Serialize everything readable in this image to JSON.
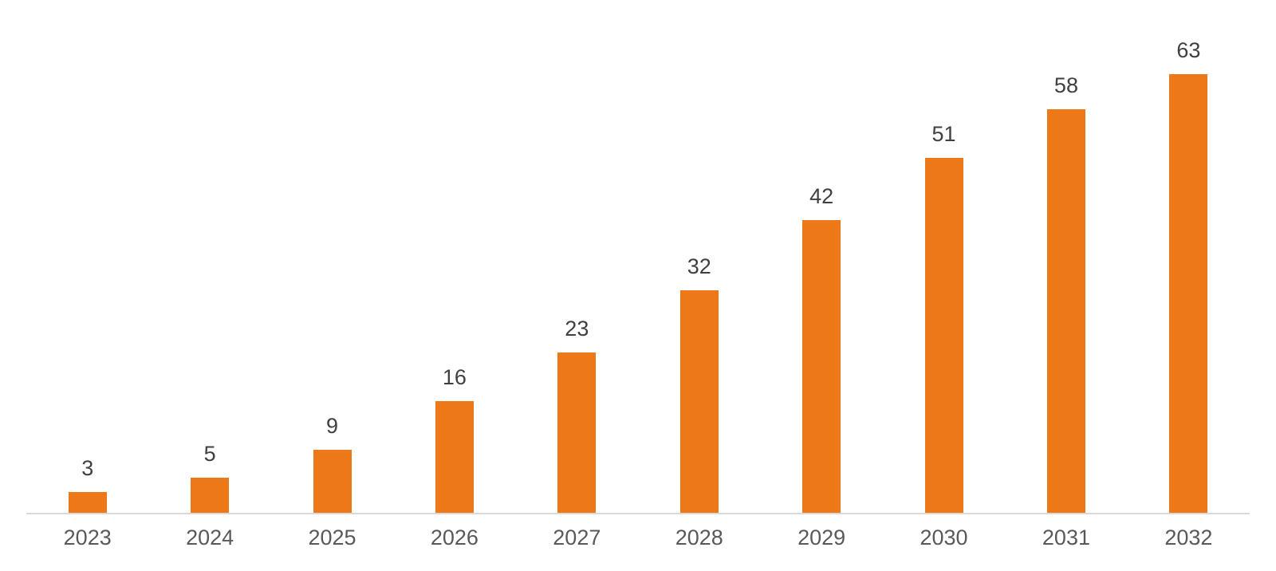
{
  "chart_data": {
    "type": "bar",
    "title": "",
    "categories": [
      "2023",
      "2024",
      "2025",
      "2026",
      "2027",
      "2028",
      "2029",
      "2030",
      "2031",
      "2032"
    ],
    "values": [
      3,
      5,
      9,
      16,
      23,
      32,
      42,
      51,
      58,
      63
    ],
    "xlabel": "",
    "ylabel": "",
    "ylim": [
      0,
      70
    ],
    "grid": false,
    "legend": false,
    "data_labels": true,
    "colors": {
      "bar": "#ED7818",
      "value_label": "#404040",
      "tick_label": "#595959",
      "axis_line": "#D9D9D9",
      "background": "#FFFFFF"
    }
  }
}
